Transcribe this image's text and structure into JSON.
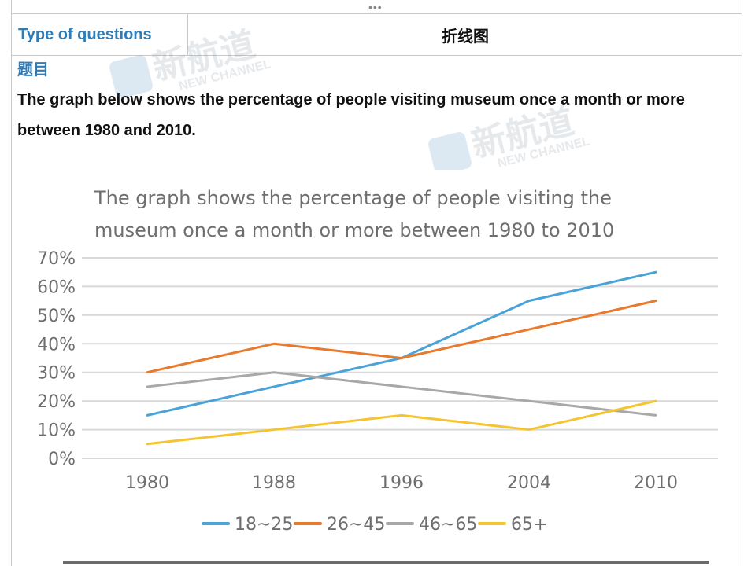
{
  "header": {
    "type_label": "Type of questions",
    "type_value": "折线图"
  },
  "section": {
    "label": "题目"
  },
  "question": {
    "text": "The graph below shows the percentage of people visiting museum once a month or more between 1980 and 2010."
  },
  "watermark": {
    "brand": "新航道",
    "sub": "NEW CHANNEL"
  },
  "chart_data": {
    "type": "line",
    "title": "The graph shows the percentage of people visiting the museum once a month or more between 1980 to 2010",
    "x": [
      "1980",
      "1988",
      "1996",
      "2004",
      "2010"
    ],
    "y_ticks": [
      "0%",
      "10%",
      "20%",
      "30%",
      "40%",
      "50%",
      "60%",
      "70%"
    ],
    "ylim": [
      0,
      70
    ],
    "grid": true,
    "legend_position": "bottom",
    "series": [
      {
        "name": "18~25",
        "color": "#4aa3d8",
        "values": [
          15,
          25,
          35,
          55,
          65
        ]
      },
      {
        "name": "26~45",
        "color": "#e87a2e",
        "values": [
          30,
          40,
          35,
          45,
          55
        ]
      },
      {
        "name": "46~65",
        "color": "#a8a8a8",
        "values": [
          25,
          30,
          25,
          20,
          15
        ]
      },
      {
        "name": "65+",
        "color": "#f5c431",
        "values": [
          5,
          10,
          15,
          10,
          20
        ]
      }
    ]
  }
}
